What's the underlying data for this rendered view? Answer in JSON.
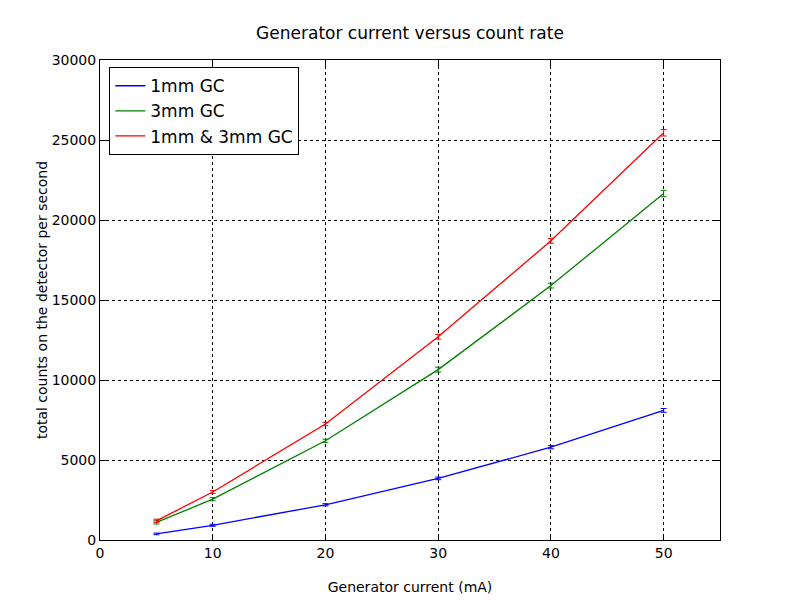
{
  "chart_data": {
    "type": "line",
    "title": "Generator current versus count rate",
    "x_label": "Generator current (mA)",
    "y_label": "total counts on the detector per second",
    "x": [
      5,
      10,
      20,
      30,
      40,
      50
    ],
    "series": [
      {
        "name": "1mm GC",
        "color": "#0000ff",
        "values": [
          380,
          920,
          2200,
          3850,
          5800,
          8100
        ],
        "errors": [
          50,
          60,
          70,
          80,
          100,
          120
        ]
      },
      {
        "name": "3mm GC",
        "color": "#008000",
        "values": [
          1100,
          2550,
          6200,
          10650,
          15900,
          21650
        ],
        "errors": [
          100,
          100,
          100,
          150,
          150,
          200
        ]
      },
      {
        "name": "1mm & 3mm GC",
        "color": "#ff0000",
        "values": [
          1200,
          3000,
          7250,
          12700,
          18700,
          25450
        ],
        "errors": [
          100,
          100,
          100,
          150,
          150,
          200
        ]
      }
    ],
    "xlim": [
      0,
      55
    ],
    "xticks": [
      0,
      10,
      20,
      30,
      40,
      50
    ],
    "ylim": [
      0,
      30000
    ],
    "yticks": [
      0,
      5000,
      10000,
      15000,
      20000,
      25000,
      30000
    ],
    "grid": true,
    "legend": "upper left",
    "line_style": "solid"
  }
}
